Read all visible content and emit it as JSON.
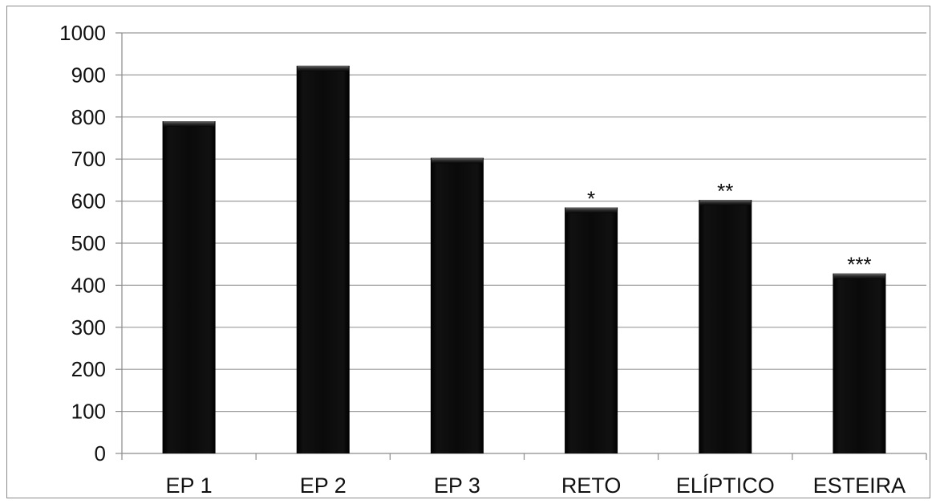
{
  "chart_data": {
    "type": "bar",
    "categories": [
      "EP 1",
      "EP 2",
      "EP 3",
      "RETO",
      "ELÍPTICO",
      "ESTEIRA"
    ],
    "values": [
      790,
      922,
      703,
      585,
      603,
      428
    ],
    "annotations": [
      "",
      "",
      "",
      "*",
      "**",
      "***"
    ],
    "ylim": [
      0,
      1000
    ],
    "yticks": [
      0,
      100,
      200,
      300,
      400,
      500,
      600,
      700,
      800,
      900,
      1000
    ],
    "grid": true,
    "legend": "none",
    "colors": {
      "bar": "#0a0a0a",
      "grid": "#9a9a9a",
      "axis": "#8a8a8a"
    }
  }
}
